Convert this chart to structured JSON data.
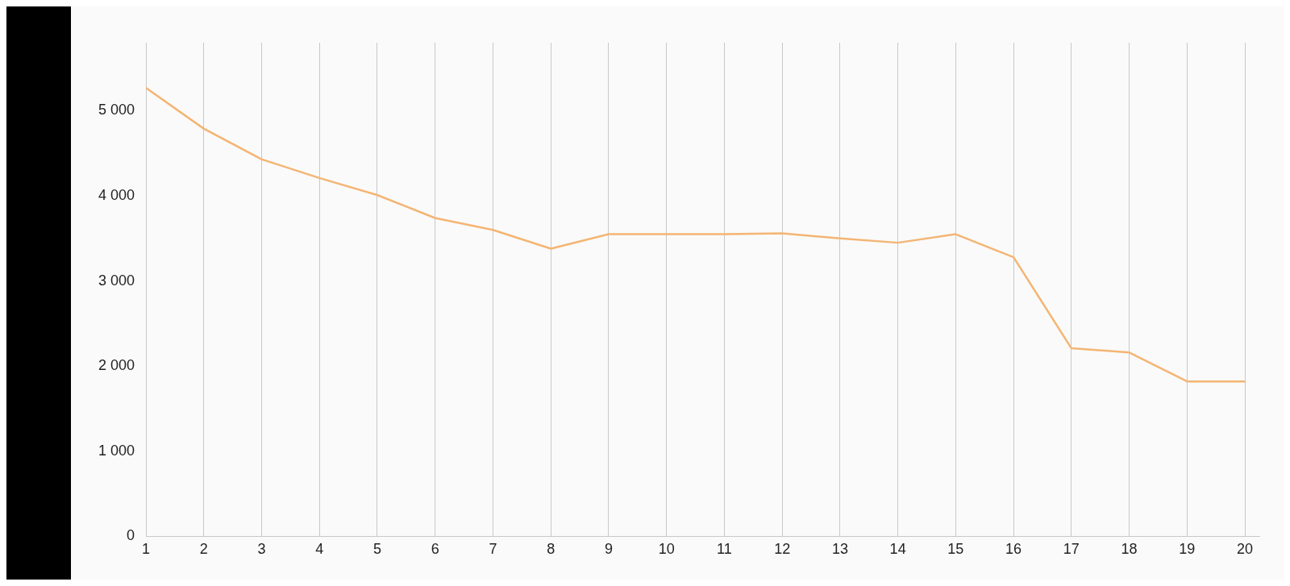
{
  "chart_data": {
    "type": "line",
    "x": [
      1,
      2,
      3,
      4,
      5,
      6,
      7,
      8,
      9,
      10,
      11,
      12,
      13,
      14,
      15,
      16,
      17,
      18,
      19,
      20
    ],
    "xlim": [
      1,
      20.25
    ],
    "xticks": [
      1,
      2,
      3,
      4,
      5,
      6,
      7,
      8,
      9,
      10,
      11,
      12,
      13,
      14,
      15,
      16,
      17,
      18,
      19,
      20
    ],
    "series": [
      {
        "color": "#f4b574",
        "values": [
          5270,
          4790,
          4430,
          4210,
          4010,
          3740,
          3600,
          3380,
          3550,
          3550,
          3550,
          3560,
          3500,
          3450,
          3550,
          3280,
          2210,
          2160,
          1820,
          1820
        ]
      }
    ],
    "ylim": [
      0,
      5800
    ],
    "yticks": [
      {
        "value": 0,
        "label": "0"
      },
      {
        "value": 1000,
        "label": "1 000"
      },
      {
        "value": 2000,
        "label": "2 000"
      },
      {
        "value": 3000,
        "label": "3 000"
      },
      {
        "value": 4000,
        "label": "4 000"
      },
      {
        "value": 5000,
        "label": "5 000"
      }
    ],
    "grid": "x",
    "legend": false,
    "marker": "none",
    "line_style": "solid"
  }
}
